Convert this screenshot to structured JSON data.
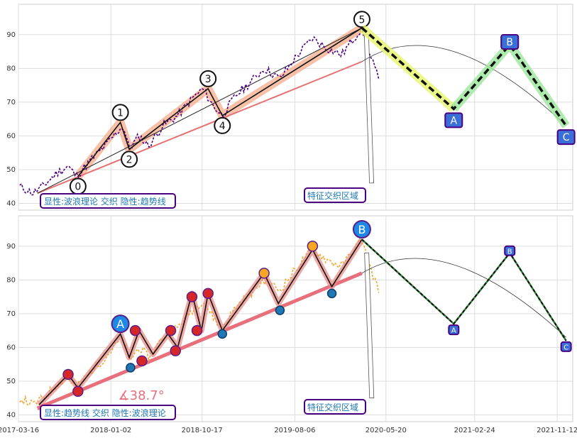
{
  "chart_data": [
    {
      "type": "line",
      "panel": "top",
      "xlim": [
        "2017-03-16",
        "2021-12-31"
      ],
      "ylim": [
        38,
        99
      ],
      "yticks": [
        40,
        50,
        60,
        70,
        80,
        90
      ],
      "grid": true,
      "price": [
        [
          "2017-03-20",
          45
        ],
        [
          "2017-05-01",
          43
        ],
        [
          "2017-06-01",
          45
        ],
        [
          "2017-07-15",
          49
        ],
        [
          "2017-08-20",
          51
        ],
        [
          "2017-09-15",
          48
        ],
        [
          "2017-11-01",
          53
        ],
        [
          "2017-12-15",
          57
        ],
        [
          "2018-01-20",
          61
        ],
        [
          "2018-02-10",
          63
        ],
        [
          "2018-03-01",
          56
        ],
        [
          "2018-04-01",
          60
        ],
        [
          "2018-05-01",
          57
        ],
        [
          "2018-06-15",
          63
        ],
        [
          "2018-08-01",
          66
        ],
        [
          "2018-09-15",
          71
        ],
        [
          "2018-10-20",
          74
        ],
        [
          "2018-11-20",
          69
        ],
        [
          "2018-12-20",
          66
        ],
        [
          "2019-02-01",
          72
        ],
        [
          "2019-03-20",
          76
        ],
        [
          "2019-05-01",
          80
        ],
        [
          "2019-06-20",
          77
        ],
        [
          "2019-08-15",
          84
        ],
        [
          "2019-10-01",
          89
        ],
        [
          "2019-11-15",
          86
        ],
        [
          "2020-01-01",
          84
        ],
        [
          "2020-02-01",
          88
        ],
        [
          "2020-03-05",
          92
        ],
        [
          "2020-03-25",
          85
        ],
        [
          "2020-04-15",
          80
        ],
        [
          "2020-05-01",
          75
        ]
      ],
      "wave_points": [
        {
          "label": "0",
          "x": "2017-09-20",
          "y": 48
        },
        {
          "label": "1",
          "x": "2018-02-01",
          "y": 64
        },
        {
          "label": "2",
          "x": "2018-03-01",
          "y": 56
        },
        {
          "label": "3",
          "x": "2018-11-05",
          "y": 74
        },
        {
          "label": "4",
          "x": "2018-12-20",
          "y": 66
        },
        {
          "label": "5",
          "x": "2020-03-05",
          "y": 92
        }
      ],
      "trend_lines": [
        {
          "from": [
            "2017-05-15",
            43
          ],
          "to": [
            "2020-03-05",
            82
          ]
        },
        {
          "from": [
            "2017-05-15",
            43
          ],
          "to": [
            "2020-03-05",
            92
          ]
        }
      ],
      "projection": [
        {
          "label": "5",
          "x": "2020-03-05",
          "y": 92
        },
        {
          "label": "A",
          "x": "2020-12-20",
          "y": 68
        },
        {
          "label": "B",
          "x": "2021-06-15",
          "y": 87
        },
        {
          "label": "C",
          "x": "2021-12-10",
          "y": 63
        }
      ],
      "arc": {
        "from": [
          "2020-03-05",
          82
        ],
        "peak": [
          "2020-12-20",
          85
        ],
        "to": [
          "2021-12-10",
          63
        ]
      },
      "annotation": "显性:波浪理论 交织 隐性:趋势线",
      "zone_label": "特征交织区域"
    },
    {
      "type": "line",
      "panel": "bottom",
      "xlim": [
        "2017-03-16",
        "2021-12-31"
      ],
      "ylim": [
        38,
        99
      ],
      "yticks": [
        40,
        50,
        60,
        70,
        80,
        90
      ],
      "xticks": [
        "2017-03-16",
        "2018-01-02",
        "2018-10-17",
        "2019-08-06",
        "2020-05-20",
        "2021-02-24",
        "2021-11-12"
      ],
      "grid": true,
      "price": [
        [
          "2017-03-20",
          45
        ],
        [
          "2017-05-01",
          43
        ],
        [
          "2017-06-01",
          45
        ],
        [
          "2017-07-15",
          49
        ],
        [
          "2017-08-20",
          51
        ],
        [
          "2017-09-15",
          48
        ],
        [
          "2017-11-01",
          53
        ],
        [
          "2017-12-15",
          57
        ],
        [
          "2018-01-20",
          61
        ],
        [
          "2018-02-10",
          63
        ],
        [
          "2018-03-01",
          56
        ],
        [
          "2018-04-01",
          60
        ],
        [
          "2018-05-01",
          57
        ],
        [
          "2018-06-15",
          63
        ],
        [
          "2018-08-01",
          66
        ],
        [
          "2018-09-15",
          71
        ],
        [
          "2018-10-20",
          74
        ],
        [
          "2018-11-20",
          69
        ],
        [
          "2018-12-20",
          66
        ],
        [
          "2019-02-01",
          72
        ],
        [
          "2019-03-20",
          76
        ],
        [
          "2019-05-01",
          80
        ],
        [
          "2019-06-20",
          77
        ],
        [
          "2019-08-15",
          84
        ],
        [
          "2019-10-01",
          89
        ],
        [
          "2019-11-15",
          86
        ],
        [
          "2020-01-01",
          84
        ],
        [
          "2020-02-01",
          88
        ],
        [
          "2020-03-05",
          92
        ],
        [
          "2020-03-25",
          85
        ],
        [
          "2020-04-15",
          80
        ],
        [
          "2020-05-01",
          75
        ]
      ],
      "wave_path": [
        [
          "2017-05-20",
          43
        ],
        [
          "2017-08-20",
          52
        ],
        [
          "2017-09-20",
          48
        ],
        [
          "2018-02-01",
          64
        ],
        [
          "2018-03-01",
          57
        ],
        [
          "2018-04-01",
          65
        ],
        [
          "2018-05-15",
          58
        ],
        [
          "2018-07-01",
          64
        ],
        [
          "2018-08-01",
          60
        ],
        [
          "2018-09-15",
          76
        ],
        [
          "2018-10-15",
          65
        ],
        [
          "2018-11-05",
          76
        ],
        [
          "2018-12-20",
          65
        ],
        [
          "2019-05-01",
          82
        ],
        [
          "2019-06-15",
          73
        ],
        [
          "2019-10-01",
          89
        ],
        [
          "2019-12-01",
          78
        ],
        [
          "2020-03-05",
          92
        ]
      ],
      "trend_line": {
        "from": [
          "2017-05-15",
          42
        ],
        "to": [
          "2020-03-05",
          82
        ]
      },
      "markers_red": [
        [
          "2017-08-20",
          52
        ],
        [
          "2017-09-20",
          47
        ],
        [
          "2018-03-20",
          65
        ],
        [
          "2018-04-10",
          56
        ],
        [
          "2018-07-10",
          65
        ],
        [
          "2018-07-25",
          59
        ],
        [
          "2018-09-15",
          75
        ],
        [
          "2018-10-01",
          65
        ],
        [
          "2018-11-05",
          76
        ]
      ],
      "markers_blue": [
        [
          "2018-03-05",
          54
        ],
        [
          "2018-12-20",
          64
        ],
        [
          "2019-06-20",
          71
        ],
        [
          "2019-12-01",
          76
        ]
      ],
      "markers_orange": [
        [
          "2019-05-01",
          82
        ],
        [
          "2019-10-01",
          90
        ]
      ],
      "big_labels": [
        {
          "label": "A",
          "x": "2018-02-01",
          "y": 67
        },
        {
          "label": "B",
          "x": "2020-03-05",
          "y": 95
        }
      ],
      "projection": [
        {
          "label": "B",
          "x": "2020-03-05",
          "y": 92
        },
        {
          "label": "A",
          "x": "2020-12-20",
          "y": 67
        },
        {
          "label": "B",
          "x": "2021-06-15",
          "y": 88
        },
        {
          "label": "C",
          "x": "2021-12-10",
          "y": 62
        }
      ],
      "arc": {
        "from": [
          "2020-03-05",
          82
        ],
        "peak": [
          "2020-12-20",
          84.5
        ],
        "to": [
          "2021-12-10",
          63
        ]
      },
      "angle_label": "∡38.7°",
      "annotation": "显性:趋势线 交织 隐性:波浪理论",
      "zone_label": "特征交织区域"
    }
  ]
}
